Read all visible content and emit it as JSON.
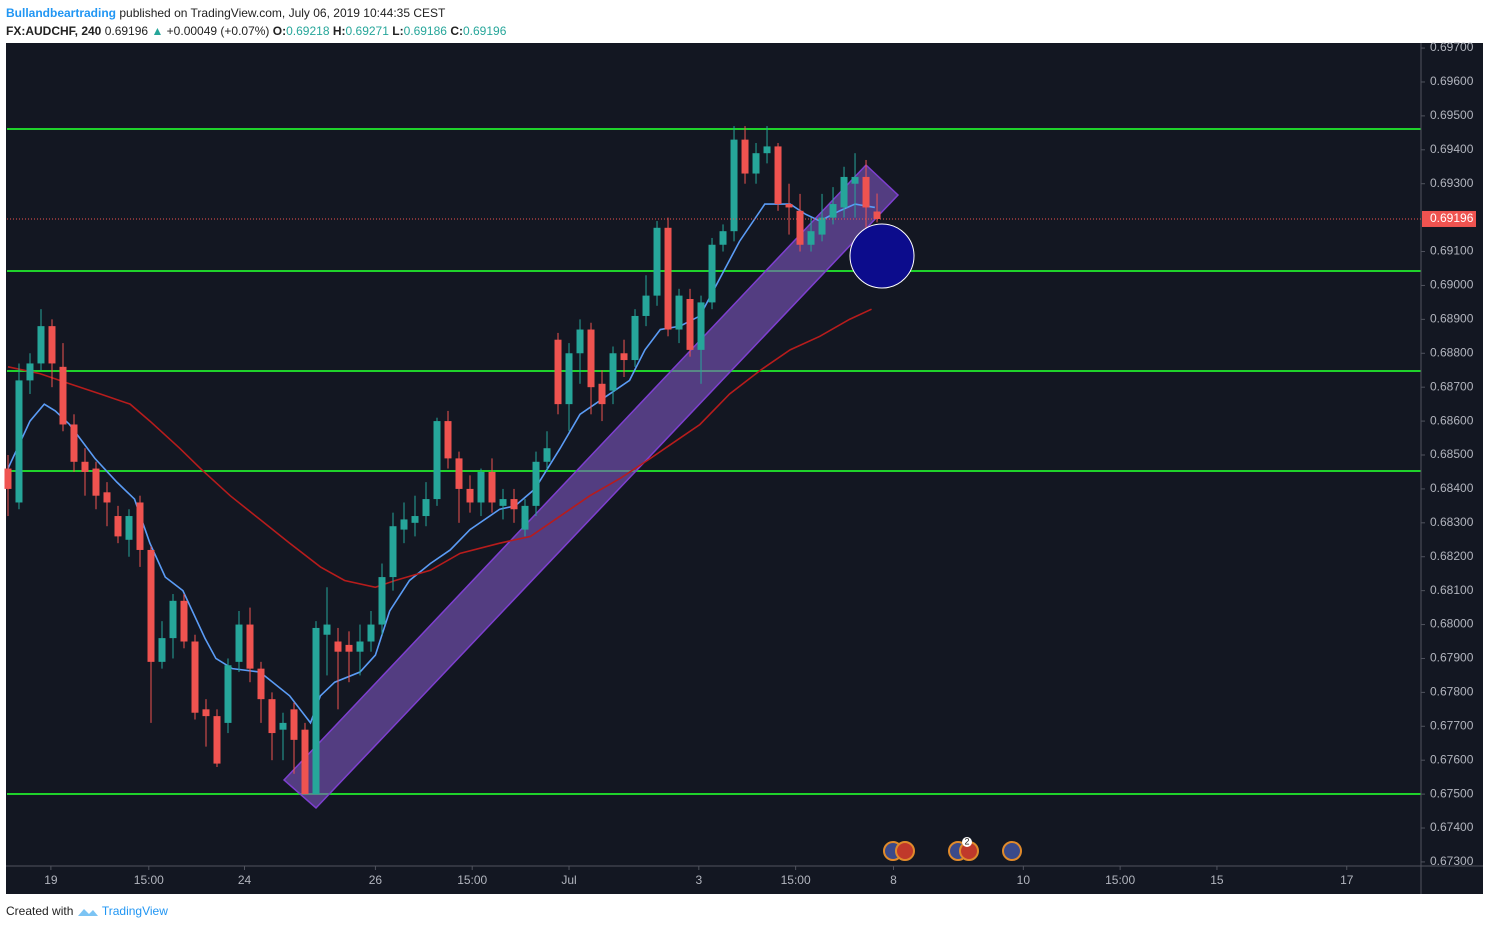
{
  "header": {
    "author": "Bullandbeartrading",
    "published": "published on TradingView.com, July 06, 2019 10:44:35 CEST",
    "symbol": "FX:AUDCHF, 240",
    "arrow": "▲",
    "change": "+0.00049 (+0.07%)",
    "ohlc_labels": [
      "O:",
      "H:",
      "L:",
      "C:"
    ]
  },
  "footer": {
    "created": "Created with",
    "brand": "TradingView"
  },
  "events_badge": "2",
  "chart_data": {
    "type": "candlestick",
    "up_color": "#26a69a",
    "down_color": "#ef5350",
    "open": [
      0.6846,
      0.6836,
      0.6872,
      0.6877,
      0.6888,
      0.6876,
      0.6859,
      0.6848,
      0.6846,
      0.6839,
      0.6832,
      0.6825,
      0.6836,
      0.6822,
      0.6789,
      0.6796,
      0.6807,
      0.6795,
      0.6775,
      0.6773,
      0.6771,
      0.6789,
      0.68,
      0.6787,
      0.6778,
      0.6769,
      0.6775,
      0.6769,
      0.675,
      0.6797,
      0.6795,
      0.6794,
      0.6792,
      0.6795,
      0.68,
      0.6814,
      0.6828,
      0.683,
      0.6832,
      0.6837,
      0.686,
      0.6849,
      0.684,
      0.6836,
      0.6845,
      0.6835,
      0.6837,
      0.6828,
      0.6835,
      0.6848,
      0.6884,
      0.6865,
      0.688,
      0.6887,
      0.6871,
      0.6869,
      0.688,
      0.6878,
      0.6891,
      0.6897,
      0.6917,
      0.6887,
      0.6896,
      0.6881,
      0.6895,
      0.6912,
      0.6916,
      0.6943,
      0.6933,
      0.6939,
      0.6941,
      0.6924,
      0.6922,
      0.6912,
      0.6915,
      0.692,
      0.6923,
      0.693,
      0.6932,
      0.69218
    ],
    "high": [
      0.685,
      0.6877,
      0.688,
      0.6893,
      0.689,
      0.6883,
      0.6862,
      0.6852,
      0.6848,
      0.6842,
      0.6835,
      0.6834,
      0.6838,
      0.6823,
      0.6801,
      0.6809,
      0.6809,
      0.6797,
      0.6778,
      0.6775,
      0.679,
      0.6804,
      0.6805,
      0.6789,
      0.678,
      0.6774,
      0.6777,
      0.6771,
      0.6801,
      0.6811,
      0.6799,
      0.6798,
      0.68,
      0.6804,
      0.6818,
      0.6833,
      0.6836,
      0.6838,
      0.6842,
      0.6861,
      0.6863,
      0.6851,
      0.6844,
      0.6846,
      0.6849,
      0.684,
      0.684,
      0.6837,
      0.6851,
      0.6857,
      0.6886,
      0.6883,
      0.689,
      0.6889,
      0.6875,
      0.6882,
      0.6884,
      0.6893,
      0.6903,
      0.6919,
      0.692,
      0.6899,
      0.6899,
      0.6897,
      0.6914,
      0.6918,
      0.6947,
      0.6947,
      0.6942,
      0.6947,
      0.6942,
      0.693,
      0.6927,
      0.692,
      0.6927,
      0.6929,
      0.6935,
      0.6939,
      0.6937,
      0.69271
    ],
    "low": [
      0.6832,
      0.6834,
      0.6868,
      0.6875,
      0.687,
      0.6857,
      0.6845,
      0.6838,
      0.6834,
      0.6829,
      0.6824,
      0.682,
      0.6817,
      0.6771,
      0.6787,
      0.679,
      0.6793,
      0.6772,
      0.6764,
      0.6758,
      0.6768,
      0.6786,
      0.6783,
      0.6771,
      0.676,
      0.676,
      0.6756,
      0.675,
      0.675,
      0.6785,
      0.6775,
      0.6783,
      0.6785,
      0.6792,
      0.6797,
      0.681,
      0.6824,
      0.6826,
      0.6829,
      0.6835,
      0.6846,
      0.683,
      0.6833,
      0.6832,
      0.6833,
      0.6831,
      0.683,
      0.6826,
      0.6832,
      0.6845,
      0.6862,
      0.6857,
      0.6871,
      0.6862,
      0.686,
      0.6865,
      0.6873,
      0.6876,
      0.6888,
      0.6894,
      0.6885,
      0.6883,
      0.6879,
      0.6871,
      0.6893,
      0.691,
      0.6913,
      0.693,
      0.693,
      0.6936,
      0.6922,
      0.6915,
      0.691,
      0.691,
      0.6913,
      0.6918,
      0.692,
      0.692,
      0.6906,
      0.69186
    ],
    "close": [
      0.684,
      0.6872,
      0.6877,
      0.6888,
      0.6877,
      0.6859,
      0.6848,
      0.6845,
      0.6838,
      0.6836,
      0.6826,
      0.6832,
      0.6822,
      0.6789,
      0.6796,
      0.6807,
      0.6795,
      0.6774,
      0.6773,
      0.6759,
      0.6788,
      0.68,
      0.6787,
      0.6778,
      0.6768,
      0.6771,
      0.6766,
      0.675,
      0.6799,
      0.68,
      0.6792,
      0.6792,
      0.6795,
      0.68,
      0.6814,
      0.6829,
      0.6831,
      0.6832,
      0.6837,
      0.686,
      0.6849,
      0.684,
      0.6836,
      0.6845,
      0.6836,
      0.6837,
      0.6834,
      0.6835,
      0.6848,
      0.6852,
      0.6865,
      0.688,
      0.6887,
      0.687,
      0.6865,
      0.688,
      0.6878,
      0.6891,
      0.6897,
      0.6917,
      0.6887,
      0.6897,
      0.6881,
      0.6895,
      0.6912,
      0.6916,
      0.6943,
      0.6933,
      0.6939,
      0.6941,
      0.6924,
      0.6923,
      0.6912,
      0.6916,
      0.692,
      0.6924,
      0.6932,
      0.6932,
      0.6923,
      0.69196
    ],
    "lines": [
      {
        "color": "#5b9cf6",
        "x": [
          0,
          2,
          3.3,
          4.3,
          5.6,
          7.9,
          9.9,
          11.5,
          12.9,
          14.3,
          15.9,
          17.9,
          18.9,
          20.4,
          22.9,
          25.6,
          27.5,
          28.4,
          29.7,
          32,
          33.4,
          34.7,
          36.5,
          38.4,
          40.2,
          42,
          44.7,
          46.1,
          47.9,
          50.2,
          52,
          54.7,
          56.5,
          57.9,
          59.3,
          61.1,
          62.9,
          64.7,
          66.5,
          68.8,
          71.1,
          72.5,
          73.8,
          75.6,
          77,
          78.8
        ],
        "values": [
          0.6846,
          0.686,
          0.6865,
          0.6863,
          0.6859,
          0.6849,
          0.6842,
          0.6837,
          0.6824,
          0.6814,
          0.681,
          0.6796,
          0.679,
          0.6787,
          0.6786,
          0.6779,
          0.6771,
          0.6779,
          0.6783,
          0.6786,
          0.6791,
          0.6804,
          0.6813,
          0.6818,
          0.6822,
          0.6828,
          0.6834,
          0.6835,
          0.684,
          0.6852,
          0.6862,
          0.6868,
          0.6872,
          0.6881,
          0.6887,
          0.6888,
          0.6891,
          0.6902,
          0.6913,
          0.6924,
          0.6924,
          0.6921,
          0.6919,
          0.6922,
          0.6924,
          0.6923
        ]
      },
      {
        "color": "#b71c1c",
        "x": [
          0,
          2.9,
          5.6,
          8.4,
          11.1,
          12.9,
          15.6,
          17.5,
          20.2,
          22.9,
          25.6,
          28.4,
          30.6,
          33.4,
          35.2,
          38.4,
          41.1,
          44.7,
          47.5,
          50.2,
          52.9,
          55.6,
          58.4,
          60.2,
          62.9,
          65.6,
          68.4,
          71.1,
          73.8,
          76.5,
          78.5
        ],
        "values": [
          0.6876,
          0.6874,
          0.6871,
          0.6868,
          0.6865,
          0.686,
          0.6852,
          0.6846,
          0.6838,
          0.6831,
          0.6824,
          0.6817,
          0.6813,
          0.6811,
          0.6813,
          0.6816,
          0.6821,
          0.6824,
          0.6826,
          0.6832,
          0.6838,
          0.6843,
          0.6849,
          0.6853,
          0.6859,
          0.6868,
          0.6875,
          0.6881,
          0.6885,
          0.689,
          0.6893
        ]
      }
    ],
    "ylim": [
      0.67288,
      0.69712
    ],
    "yticks": [
      {
        "value": 0.697,
        "label": "0.69700"
      },
      {
        "value": 0.696,
        "label": "0.69600"
      },
      {
        "value": 0.695,
        "label": "0.69500"
      },
      {
        "value": 0.694,
        "label": "0.69400"
      },
      {
        "value": 0.693,
        "label": "0.69300"
      },
      {
        "value": 0.691,
        "label": "0.69100"
      },
      {
        "value": 0.69,
        "label": "0.69000"
      },
      {
        "value": 0.689,
        "label": "0.68900"
      },
      {
        "value": 0.688,
        "label": "0.68800"
      },
      {
        "value": 0.687,
        "label": "0.68700"
      },
      {
        "value": 0.686,
        "label": "0.68600"
      },
      {
        "value": 0.685,
        "label": "0.68500"
      },
      {
        "value": 0.684,
        "label": "0.68400"
      },
      {
        "value": 0.683,
        "label": "0.68300"
      },
      {
        "value": 0.682,
        "label": "0.68200"
      },
      {
        "value": 0.681,
        "label": "0.68100"
      },
      {
        "value": 0.68,
        "label": "0.68000"
      },
      {
        "value": 0.679,
        "label": "0.67900"
      },
      {
        "value": 0.678,
        "label": "0.67800"
      },
      {
        "value": 0.677,
        "label": "0.67700"
      },
      {
        "value": 0.676,
        "label": "0.67600"
      },
      {
        "value": 0.675,
        "label": "0.67500"
      },
      {
        "value": 0.674,
        "label": "0.67400"
      },
      {
        "value": 0.673,
        "label": "0.67300"
      }
    ],
    "xlim": [
      -0.09,
      128.45
    ],
    "xticks": [
      {
        "value": 3.9,
        "label": "19"
      },
      {
        "value": 12.8,
        "label": "15:00"
      },
      {
        "value": 21.5,
        "label": "24"
      },
      {
        "value": 33.4,
        "label": "26"
      },
      {
        "value": 42.2,
        "label": "15:00"
      },
      {
        "value": 51,
        "label": "Jul"
      },
      {
        "value": 62.8,
        "label": "3"
      },
      {
        "value": 71.6,
        "label": "15:00"
      },
      {
        "value": 80.5,
        "label": "8"
      },
      {
        "value": 92.3,
        "label": "10"
      },
      {
        "value": 101.1,
        "label": "15:00"
      },
      {
        "value": 109.9,
        "label": "15"
      },
      {
        "value": 121.7,
        "label": "17"
      }
    ],
    "last_price_color": "#ef5350"
  }
}
